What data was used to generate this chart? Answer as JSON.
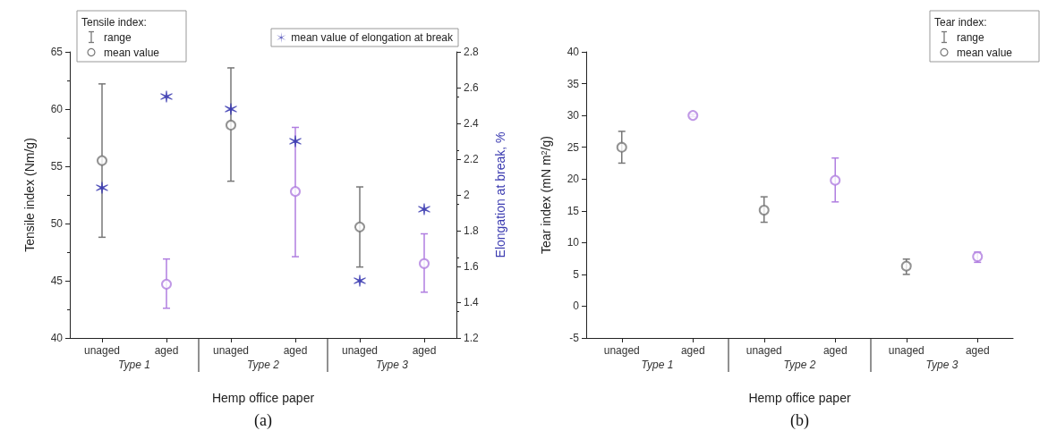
{
  "chart_data": [
    {
      "type": "scatter",
      "categories": [
        "unaged",
        "aged",
        "unaged",
        "aged",
        "unaged",
        "aged"
      ],
      "xlabel": "Hemp office paper",
      "ylabel": "Tensile index (Nm/g)",
      "y2label": "Elongation at break, %",
      "legend_title": "Tensile index:",
      "ylim": [
        40,
        65
      ],
      "yticks": [
        40,
        45,
        50,
        55,
        60,
        65
      ],
      "y2lim": [
        1.2,
        2.8
      ],
      "y2ticks": [
        1.2,
        1.4,
        1.6,
        1.8,
        2.0,
        2.2,
        2.4,
        2.6,
        2.8
      ],
      "legend": "top",
      "annotations": [
        "range",
        "Type 1",
        "Type 2",
        "Type 3",
        "(a)"
      ],
      "series": [
        {
          "name": "mean value",
          "marker": "circle",
          "colors": [
            "#777777",
            "#b07ee0",
            "#777777",
            "#b07ee0",
            "#777777",
            "#b07ee0"
          ],
          "values": [
            55.5,
            44.7,
            58.6,
            52.8,
            49.7,
            46.5
          ],
          "errors": [
            [
              48.8,
              62.2
            ],
            [
              42.6,
              46.9
            ],
            [
              53.7,
              63.6
            ],
            [
              47.1,
              58.4
            ],
            [
              46.2,
              53.2
            ],
            [
              44.0,
              49.1
            ]
          ]
        },
        {
          "name": "mean value of elongation at break",
          "marker": "cross",
          "axis": "y2",
          "color": "#3a3ab0",
          "values": [
            2.04,
            2.55,
            2.48,
            2.3,
            1.52,
            1.92
          ]
        }
      ]
    },
    {
      "type": "scatter",
      "categories": [
        "unaged",
        "aged",
        "unaged",
        "aged",
        "unaged",
        "aged"
      ],
      "xlabel": "Hemp office paper",
      "ylabel": "Tear index (mN m$^{2}$/g)",
      "legend_title": "Tear index:",
      "ylim": [
        -5,
        40
      ],
      "yticks": [
        -5,
        0,
        5,
        10,
        15,
        20,
        25,
        30,
        35,
        40
      ],
      "legend": "top right",
      "annotations": [
        "range",
        "Type 1",
        "Type 2",
        "Type 3",
        "(b)"
      ],
      "series": [
        {
          "name": "mean value",
          "marker": "circle",
          "colors": [
            "#777777",
            "#b07ee0",
            "#777777",
            "#b07ee0",
            "#777777",
            "#b07ee0"
          ],
          "values": [
            25.0,
            30.0,
            15.1,
            19.8,
            6.3,
            7.8
          ],
          "errors": [
            [
              22.5,
              27.5
            ],
            [
              29.8,
              30.2
            ],
            [
              13.2,
              17.2
            ],
            [
              16.4,
              23.3
            ],
            [
              5.0,
              7.4
            ],
            [
              6.9,
              8.5
            ]
          ]
        }
      ]
    }
  ]
}
